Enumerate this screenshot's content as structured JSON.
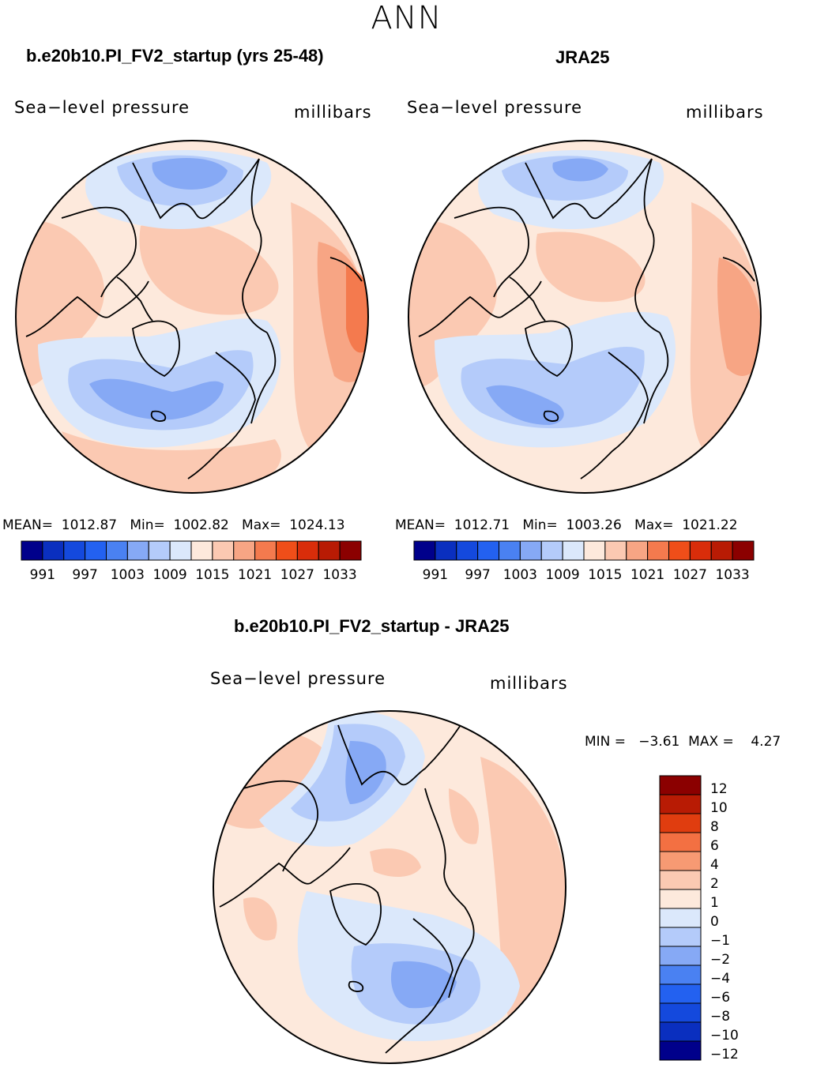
{
  "page_title": "ANN",
  "panels": [
    {
      "title": "b.e20b10.PI_FV2_startup (yrs 25-48)",
      "variable": "Sea−level pressure",
      "units": "millibars",
      "stats_text": "MEAN=  1012.87   Min=  1002.82   Max=  1024.13"
    },
    {
      "title": "JRA25",
      "variable": "Sea−level pressure",
      "units": "millibars",
      "stats_text": "MEAN=  1012.71   Min=  1003.26   Max=  1021.22"
    },
    {
      "title": "b.e20b10.PI_FV2_startup - JRA25",
      "variable": "Sea−level pressure",
      "units": "millibars",
      "minmax_text": "MIN =   −3.61  MAX =    4.27"
    }
  ],
  "chart_data": [
    {
      "type": "heatmap",
      "title": "b.e20b10.PI_FV2_startup (yrs 25-48)",
      "projection": "north-polar-stereographic",
      "variable": "Sea-level pressure",
      "units": "millibars",
      "mean": 1012.87,
      "min": 1002.82,
      "max": 1024.13,
      "colorbar_ticks": [
        "991",
        "997",
        "1003",
        "1009",
        "1015",
        "1021",
        "1027",
        "1033"
      ],
      "contour_levels": [
        991,
        994,
        997,
        1000,
        1003,
        1006,
        1009,
        1012,
        1015,
        1018,
        1021,
        1024,
        1027,
        1030,
        1033
      ]
    },
    {
      "type": "heatmap",
      "title": "JRA25",
      "projection": "north-polar-stereographic",
      "variable": "Sea-level pressure",
      "units": "millibars",
      "mean": 1012.71,
      "min": 1003.26,
      "max": 1021.22,
      "colorbar_ticks": [
        "991",
        "997",
        "1003",
        "1009",
        "1015",
        "1021",
        "1027",
        "1033"
      ],
      "contour_levels": [
        991,
        994,
        997,
        1000,
        1003,
        1006,
        1009,
        1012,
        1015,
        1018,
        1021,
        1024,
        1027,
        1030,
        1033
      ]
    },
    {
      "type": "heatmap",
      "title": "b.e20b10.PI_FV2_startup - JRA25",
      "projection": "north-polar-stereographic",
      "variable": "Sea-level pressure",
      "units": "millibars",
      "min": -3.61,
      "max": 4.27,
      "colorbar_ticks": [
        "12",
        "10",
        "8",
        "6",
        "4",
        "2",
        "1",
        "0",
        "−1",
        "−2",
        "−4",
        "−6",
        "−8",
        "−10",
        "−12"
      ],
      "contour_levels": [
        -12,
        -10,
        -8,
        -6,
        -4,
        -2,
        -1,
        0,
        1,
        2,
        4,
        6,
        8,
        10,
        12
      ]
    }
  ],
  "colors": {
    "abs_scale": [
      "#00008b",
      "#0a2fbf",
      "#1449dd",
      "#2361f0",
      "#4a81f2",
      "#86a9f5",
      "#b4cbfa",
      "#dbe8fb",
      "#fde9dc",
      "#fbc9b2",
      "#f7a584",
      "#f47a4e",
      "#ef4e19",
      "#d92d0a",
      "#b81b04",
      "#8b0000"
    ],
    "diff_scale": [
      "#8b0000",
      "#b81b04",
      "#e03d0f",
      "#f37042",
      "#f79a73",
      "#fbc9b2",
      "#fde9dc",
      "#dbe8fb",
      "#b4cbfa",
      "#86a9f5",
      "#4a81f2",
      "#2361f0",
      "#1449dd",
      "#0a2fbf",
      "#00008b"
    ]
  }
}
